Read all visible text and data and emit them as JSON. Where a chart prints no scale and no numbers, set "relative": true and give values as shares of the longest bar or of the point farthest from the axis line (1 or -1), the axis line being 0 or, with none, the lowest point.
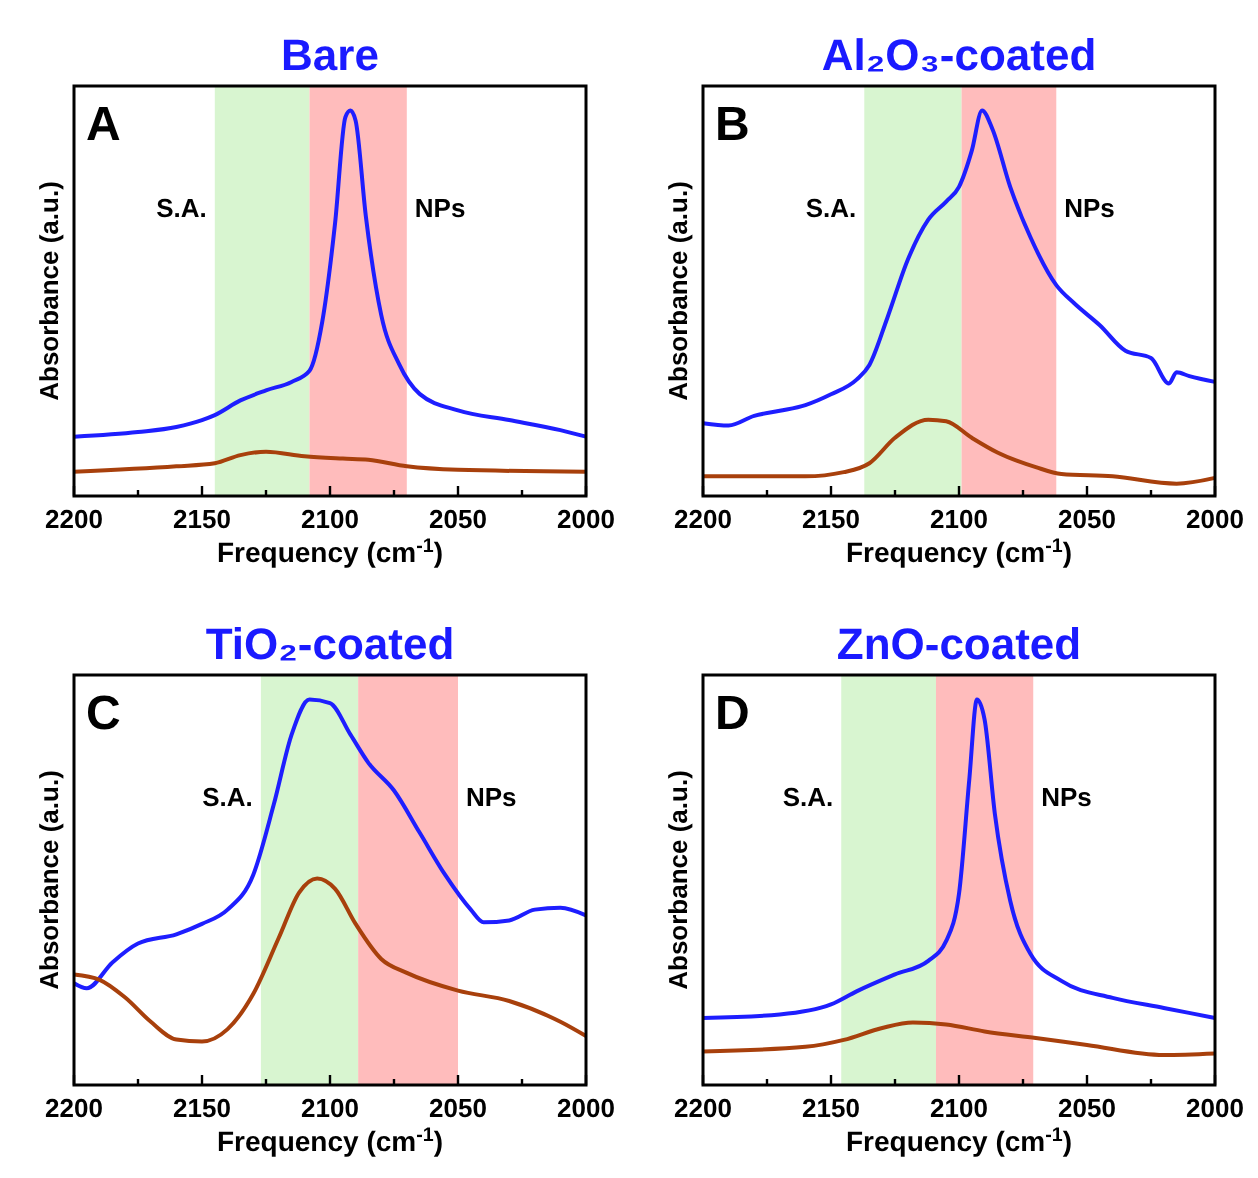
{
  "chart_data": [
    {
      "type": "line",
      "title": "Bare",
      "xlabel": "Frequency (cm$^{-1}$)",
      "ylabel": "Absorbance (a.u.)",
      "relative": true,
      "xlim": [
        2200,
        2000
      ],
      "xticks": [
        2200,
        {
          "value": 2175,
          "label": null
        },
        2150,
        {
          "value": 2125,
          "label": null
        },
        2100,
        {
          "value": 2075,
          "label": null
        },
        2050,
        {
          "value": 2025,
          "label": null
        },
        2000
      ],
      "annotations": [
        "A",
        "S.A.",
        "NPs"
      ],
      "bands": [
        {
          "axis": "x",
          "from": 2145,
          "to": 2108,
          "color": "#d8f5d0"
        },
        {
          "axis": "x",
          "from": 2108,
          "to": 2070,
          "color": "#ffbcbc"
        }
      ],
      "series": [
        {
          "color": "#1e1eff",
          "x": [
            2200,
            2175,
            2160,
            2150,
            2145,
            2135,
            2125,
            2115,
            2108,
            2103,
            2098,
            2094,
            2092,
            2090,
            2086,
            2080,
            2073,
            2065,
            2050,
            2030,
            2010,
            2000
          ],
          "values": [
            0.154,
            0.166,
            0.179,
            0.197,
            0.21,
            0.248,
            0.274,
            0.296,
            0.325,
            0.453,
            0.709,
            0.983,
            1,
            0.974,
            0.726,
            0.47,
            0.342,
            0.265,
            0.222,
            0.197,
            0.171,
            0.154
          ]
        },
        {
          "color": "#a8400c",
          "x": [
            2200,
            2160,
            2145,
            2135,
            2125,
            2110,
            2095,
            2085,
            2070,
            2050,
            2000
          ],
          "values": [
            0.063,
            0.077,
            0.085,
            0.106,
            0.115,
            0.103,
            0.097,
            0.094,
            0.077,
            0.068,
            0.063
          ]
        }
      ]
    },
    {
      "type": "line",
      "title": "Al₂O₃-coated",
      "xlabel": "Frequency (cm$^{-1}$)",
      "ylabel": "Absorbance (a.u.)",
      "relative": true,
      "xlim": [
        2200,
        2000
      ],
      "xticks": [
        2200,
        {
          "value": 2175,
          "label": null
        },
        2150,
        {
          "value": 2125,
          "label": null
        },
        2100,
        {
          "value": 2075,
          "label": null
        },
        2050,
        {
          "value": 2025,
          "label": null
        },
        2000
      ],
      "annotations": [
        "B",
        "S.A.",
        "NPs"
      ],
      "bands": [
        {
          "axis": "x",
          "from": 2137,
          "to": 2099,
          "color": "#d8f5d0"
        },
        {
          "axis": "x",
          "from": 2099,
          "to": 2062,
          "color": "#ffbcbc"
        }
      ],
      "series": [
        {
          "color": "#1e1eff",
          "x": [
            2200,
            2190,
            2180,
            2170,
            2160,
            2150,
            2140,
            2135,
            2128,
            2120,
            2112,
            2105,
            2100,
            2095,
            2091,
            2087,
            2080,
            2072,
            2062,
            2055,
            2045,
            2035,
            2025,
            2018,
            2015,
            2010,
            2000
          ],
          "values": [
            0.189,
            0.183,
            0.208,
            0.221,
            0.236,
            0.264,
            0.302,
            0.34,
            0.462,
            0.613,
            0.717,
            0.764,
            0.802,
            0.896,
            1,
            0.953,
            0.802,
            0.67,
            0.547,
            0.5,
            0.443,
            0.377,
            0.358,
            0.292,
            0.321,
            0.311,
            0.296
          ]
        },
        {
          "color": "#a8400c",
          "x": [
            2200,
            2160,
            2145,
            2135,
            2125,
            2112,
            2105,
            2095,
            2085,
            2070,
            2060,
            2040,
            2015,
            2000
          ],
          "values": [
            0.051,
            0.051,
            0.062,
            0.085,
            0.151,
            0.198,
            0.194,
            0.151,
            0.113,
            0.075,
            0.057,
            0.051,
            0.032,
            0.047
          ]
        }
      ]
    },
    {
      "type": "line",
      "title": "TiO₂-coated",
      "xlabel": "Frequency (cm$^{-1}$)",
      "ylabel": "Absorbance (a.u.)",
      "relative": true,
      "xlim": [
        2200,
        2000
      ],
      "xticks": [
        2200,
        {
          "value": 2175,
          "label": null
        },
        2150,
        {
          "value": 2125,
          "label": null
        },
        2100,
        {
          "value": 2075,
          "label": null
        },
        2050,
        {
          "value": 2025,
          "label": null
        },
        2000
      ],
      "annotations": [
        "C",
        "S.A.",
        "NPs"
      ],
      "bands": [
        {
          "axis": "x",
          "from": 2127,
          "to": 2089,
          "color": "#d8f5d0"
        },
        {
          "axis": "x",
          "from": 2089,
          "to": 2050,
          "color": "#ffbcbc"
        }
      ],
      "series": [
        {
          "color": "#1e1eff",
          "x": [
            2200,
            2195,
            2185,
            2175,
            2160,
            2150,
            2140,
            2130,
            2122,
            2115,
            2108,
            2100,
            2092,
            2085,
            2075,
            2065,
            2055,
            2045,
            2040,
            2030,
            2020,
            2010,
            2000
          ],
          "values": [
            0.264,
            0.251,
            0.318,
            0.367,
            0.391,
            0.418,
            0.455,
            0.545,
            0.727,
            0.909,
            1,
            0.991,
            0.909,
            0.836,
            0.764,
            0.655,
            0.545,
            0.455,
            0.422,
            0.427,
            0.455,
            0.46,
            0.44
          ]
        },
        {
          "color": "#a8400c",
          "x": [
            2200,
            2190,
            2180,
            2170,
            2160,
            2150,
            2140,
            2130,
            2120,
            2112,
            2105,
            2098,
            2090,
            2080,
            2070,
            2050,
            2030,
            2010,
            2000
          ],
          "values": [
            0.287,
            0.273,
            0.227,
            0.164,
            0.118,
            0.113,
            0.145,
            0.236,
            0.382,
            0.5,
            0.536,
            0.509,
            0.418,
            0.327,
            0.291,
            0.245,
            0.218,
            0.164,
            0.127
          ]
        }
      ]
    },
    {
      "type": "line",
      "title": "ZnO-coated",
      "xlabel": "Frequency (cm$^{-1}$)",
      "ylabel": "Absorbance (a.u.)",
      "relative": true,
      "xlim": [
        2200,
        2000
      ],
      "xticks": [
        2200,
        {
          "value": 2175,
          "label": null
        },
        2150,
        {
          "value": 2125,
          "label": null
        },
        2100,
        {
          "value": 2075,
          "label": null
        },
        2050,
        {
          "value": 2025,
          "label": null
        },
        2000
      ],
      "annotations": [
        "D",
        "S.A.",
        "NPs"
      ],
      "bands": [
        {
          "axis": "x",
          "from": 2146,
          "to": 2109,
          "color": "#d8f5d0"
        },
        {
          "axis": "x",
          "from": 2109,
          "to": 2071,
          "color": "#ffbcbc"
        }
      ],
      "series": [
        {
          "color": "#1e1eff",
          "x": [
            2200,
            2170,
            2150,
            2140,
            2125,
            2112,
            2105,
            2100,
            2096,
            2093,
            2090,
            2086,
            2080,
            2072,
            2060,
            2040,
            2020,
            2000
          ],
          "values": [
            0.174,
            0.183,
            0.209,
            0.243,
            0.287,
            0.322,
            0.374,
            0.496,
            0.791,
            1,
            0.948,
            0.704,
            0.478,
            0.339,
            0.27,
            0.226,
            0.2,
            0.174
          ]
        },
        {
          "color": "#a8400c",
          "x": [
            2200,
            2160,
            2145,
            2130,
            2118,
            2105,
            2090,
            2070,
            2050,
            2020,
            2000
          ],
          "values": [
            0.087,
            0.099,
            0.117,
            0.148,
            0.162,
            0.157,
            0.139,
            0.122,
            0.104,
            0.078,
            0.082
          ]
        }
      ]
    }
  ]
}
